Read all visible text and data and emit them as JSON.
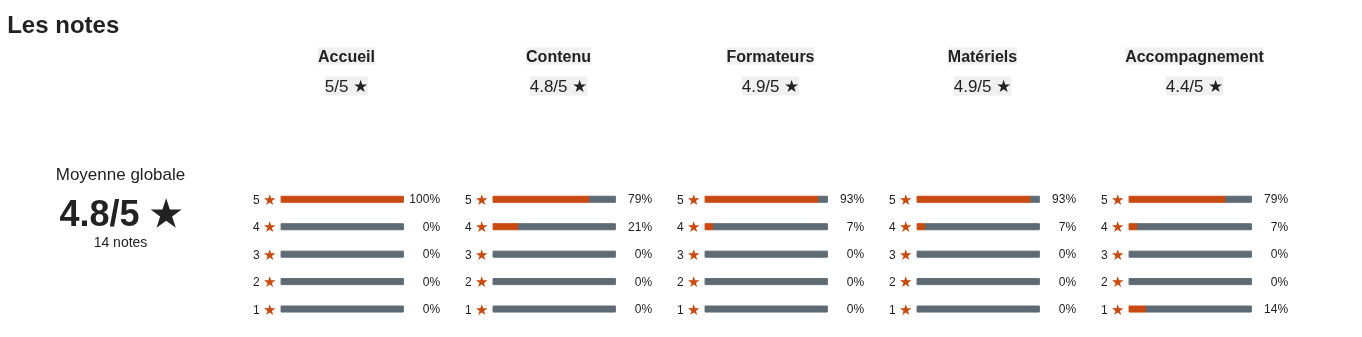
{
  "chart_data": [
    {
      "type": "other",
      "title": "Les notes",
      "annotations": [
        "Moyenne globale",
        "4.8/5 ★",
        "14 notes"
      ]
    },
    {
      "type": "bar",
      "orientation": "horizontal",
      "stacked": true,
      "title": "Accueil",
      "subtitle": "5/5 ★",
      "categories": [
        "5 ★",
        "4 ★",
        "3 ★",
        "2 ★",
        "1 ★"
      ],
      "series": [
        {
          "color": "#c84a10",
          "values": [
            100,
            0,
            0,
            0,
            0
          ],
          "value_labels": [
            "100%",
            "0%",
            "0%",
            "0%",
            "0%"
          ]
        },
        {
          "color": "#5e6b75",
          "values": [
            0,
            100,
            100,
            100,
            100
          ]
        }
      ]
    },
    {
      "type": "bar",
      "orientation": "horizontal",
      "stacked": true,
      "title": "Contenu",
      "subtitle": "4.8/5 ★",
      "categories": [
        "5 ★",
        "4 ★",
        "3 ★",
        "2 ★",
        "1 ★"
      ],
      "series": [
        {
          "color": "#c84a10",
          "values": [
            79,
            21,
            0,
            0,
            0
          ],
          "value_labels": [
            "79%",
            "21%",
            "0%",
            "0%",
            "0%"
          ]
        },
        {
          "color": "#5e6b75",
          "values": [
            21,
            79,
            100,
            100,
            100
          ]
        }
      ]
    },
    {
      "type": "bar",
      "orientation": "horizontal",
      "stacked": true,
      "title": "Formateurs",
      "subtitle": "4.9/5 ★",
      "categories": [
        "5 ★",
        "4 ★",
        "3 ★",
        "2 ★",
        "1 ★"
      ],
      "series": [
        {
          "color": "#c84a10",
          "values": [
            93,
            7,
            0,
            0,
            0
          ],
          "value_labels": [
            "93%",
            "7%",
            "0%",
            "0%",
            "0%"
          ]
        },
        {
          "color": "#5e6b75",
          "values": [
            7,
            93,
            100,
            100,
            100
          ]
        }
      ]
    },
    {
      "type": "bar",
      "orientation": "horizontal",
      "stacked": true,
      "title": "Matériels",
      "subtitle": "4.9/5 ★",
      "categories": [
        "5 ★",
        "4 ★",
        "3 ★",
        "2 ★",
        "1 ★"
      ],
      "series": [
        {
          "color": "#c84a10",
          "values": [
            93,
            7,
            0,
            0,
            0
          ],
          "value_labels": [
            "93%",
            "7%",
            "0%",
            "0%",
            "0%"
          ]
        },
        {
          "color": "#5e6b75",
          "values": [
            7,
            93,
            100,
            100,
            100
          ]
        }
      ]
    },
    {
      "type": "bar",
      "orientation": "horizontal",
      "stacked": true,
      "title": "Accompagnement",
      "subtitle": "4.4/5 ★",
      "categories": [
        "5 ★",
        "4 ★",
        "3 ★",
        "2 ★",
        "1 ★"
      ],
      "series": [
        {
          "color": "#c84a10",
          "values": [
            79,
            7,
            0,
            0,
            14
          ],
          "value_labels": [
            "79%",
            "7%",
            "0%",
            "0%",
            "14%"
          ]
        },
        {
          "color": "#5e6b75",
          "values": [
            21,
            93,
            100,
            100,
            86
          ]
        }
      ]
    }
  ]
}
